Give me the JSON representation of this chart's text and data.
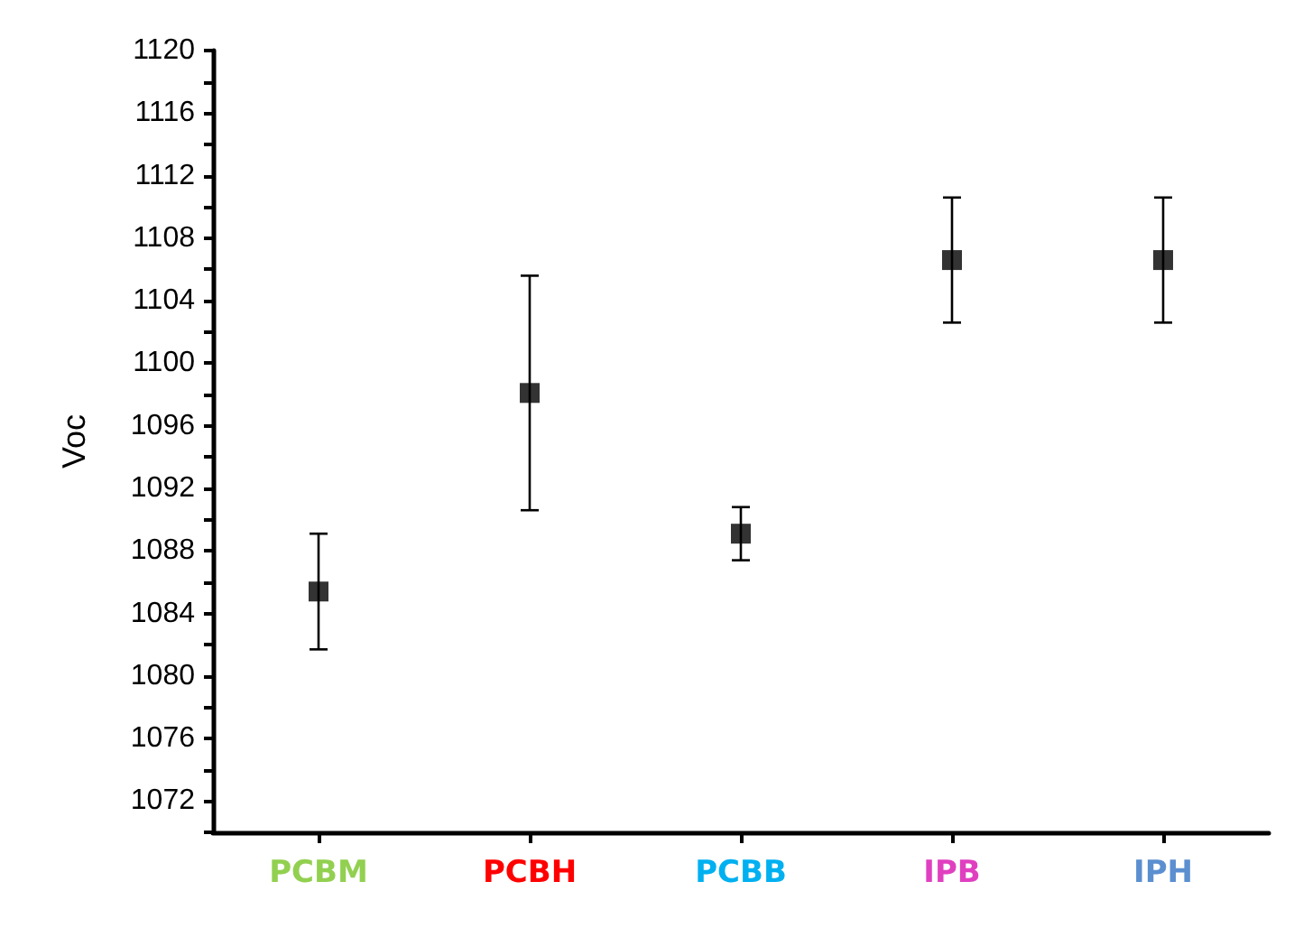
{
  "chart_data": {
    "type": "scatter",
    "ylabel": "Voc",
    "categories": [
      "PCBM",
      "PCBH",
      "PCBB",
      "IPB",
      "IPH"
    ],
    "series": [
      {
        "color": "#000000",
        "values": [
          1085.4,
          1098.1,
          1089.1,
          1106.6,
          1106.6
        ],
        "errors": [
          3.7,
          7.5,
          1.7,
          4,
          4
        ]
      }
    ],
    "ylim": [
      1070,
      1120
    ],
    "yticks": [
      {
        "value": 1070,
        "label": null
      },
      1072,
      {
        "value": 1074,
        "label": null
      },
      1076,
      {
        "value": 1078,
        "label": null
      },
      1080,
      {
        "value": 1082,
        "label": null
      },
      1084,
      {
        "value": 1086,
        "label": null
      },
      1088,
      {
        "value": 1090,
        "label": null
      },
      1092,
      {
        "value": 1094,
        "label": null
      },
      1096,
      {
        "value": 1098,
        "label": null
      },
      1100,
      {
        "value": 1102,
        "label": null
      },
      1104,
      {
        "value": 1106,
        "label": null
      },
      1108,
      {
        "value": 1110,
        "label": null
      },
      1112,
      {
        "value": 1114,
        "label": null
      },
      1116,
      {
        "value": 1118,
        "label": null
      },
      1120
    ],
    "marker": "square"
  }
}
